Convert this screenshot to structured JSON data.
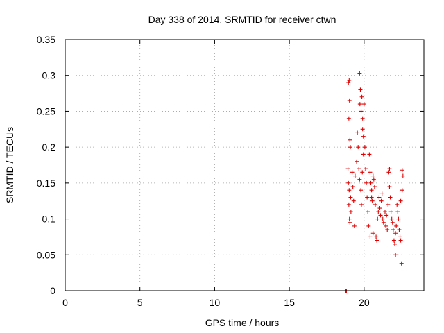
{
  "chart_data": {
    "type": "scatter",
    "title": "Day 338 of 2014, SRMTID for receiver ctwn",
    "xlabel": "GPS time / hours",
    "ylabel": "SRMTID / TECUs",
    "xlim": [
      0,
      24
    ],
    "ylim": [
      0,
      0.35
    ],
    "xticks": [
      0,
      5,
      10,
      15,
      20
    ],
    "yticks": [
      0,
      0.05,
      0.1,
      0.15,
      0.2,
      0.25,
      0.3,
      0.35
    ],
    "xtick_labels": [
      "0",
      "5",
      "10",
      "15",
      "20"
    ],
    "ytick_labels": [
      "0",
      "0.05",
      "0.1",
      "0.15",
      "0.2",
      "0.25",
      "0.3",
      "0.35"
    ],
    "grid": true,
    "legend": "none",
    "marker": "plus",
    "marker_color": "#e00000",
    "series": [
      {
        "points": [
          [
            18.78,
            0.0
          ],
          [
            18.8,
            0.0
          ],
          [
            18.82,
            0.0
          ],
          [
            18.95,
            0.29
          ],
          [
            19.0,
            0.293
          ],
          [
            19.02,
            0.265
          ],
          [
            18.98,
            0.24
          ],
          [
            19.05,
            0.21
          ],
          [
            19.08,
            0.2
          ],
          [
            18.92,
            0.17
          ],
          [
            18.95,
            0.15
          ],
          [
            19.0,
            0.14
          ],
          [
            19.1,
            0.13
          ],
          [
            19.02,
            0.1
          ],
          [
            19.05,
            0.095
          ],
          [
            18.98,
            0.12
          ],
          [
            19.12,
            0.11
          ],
          [
            19.2,
            0.165
          ],
          [
            19.25,
            0.145
          ],
          [
            19.3,
            0.125
          ],
          [
            19.35,
            0.09
          ],
          [
            19.4,
            0.16
          ],
          [
            19.5,
            0.18
          ],
          [
            19.55,
            0.22
          ],
          [
            19.6,
            0.2
          ],
          [
            19.7,
            0.303
          ],
          [
            19.75,
            0.28
          ],
          [
            19.72,
            0.26
          ],
          [
            19.8,
            0.25
          ],
          [
            19.85,
            0.27
          ],
          [
            19.9,
            0.225
          ],
          [
            19.95,
            0.215
          ],
          [
            20.0,
            0.26
          ],
          [
            19.9,
            0.24
          ],
          [
            19.65,
            0.17
          ],
          [
            19.7,
            0.155
          ],
          [
            19.78,
            0.14
          ],
          [
            19.82,
            0.12
          ],
          [
            19.88,
            0.165
          ],
          [
            19.95,
            0.19
          ],
          [
            20.05,
            0.2
          ],
          [
            20.1,
            0.17
          ],
          [
            20.15,
            0.15
          ],
          [
            20.2,
            0.13
          ],
          [
            20.25,
            0.11
          ],
          [
            20.3,
            0.09
          ],
          [
            20.35,
            0.19
          ],
          [
            20.4,
            0.165
          ],
          [
            20.45,
            0.15
          ],
          [
            20.5,
            0.14
          ],
          [
            20.55,
            0.125
          ],
          [
            20.6,
            0.16
          ],
          [
            20.65,
            0.155
          ],
          [
            20.7,
            0.145
          ],
          [
            20.75,
            0.12
          ],
          [
            20.8,
            0.075
          ],
          [
            20.85,
            0.07
          ],
          [
            20.9,
            0.1
          ],
          [
            20.95,
            0.11
          ],
          [
            21.0,
            0.13
          ],
          [
            21.05,
            0.115
          ],
          [
            21.1,
            0.105
          ],
          [
            21.15,
            0.125
          ],
          [
            21.2,
            0.135
          ],
          [
            21.25,
            0.1
          ],
          [
            21.3,
            0.095
          ],
          [
            21.4,
            0.11
          ],
          [
            21.45,
            0.09
          ],
          [
            21.5,
            0.105
          ],
          [
            21.55,
            0.085
          ],
          [
            21.6,
            0.12
          ],
          [
            21.65,
            0.165
          ],
          [
            21.7,
            0.145
          ],
          [
            21.75,
            0.13
          ],
          [
            21.8,
            0.11
          ],
          [
            21.85,
            0.1
          ],
          [
            21.9,
            0.095
          ],
          [
            21.95,
            0.085
          ],
          [
            22.0,
            0.07
          ],
          [
            22.05,
            0.065
          ],
          [
            22.1,
            0.08
          ],
          [
            22.15,
            0.09
          ],
          [
            22.2,
            0.12
          ],
          [
            22.25,
            0.11
          ],
          [
            22.3,
            0.1
          ],
          [
            22.35,
            0.085
          ],
          [
            22.4,
            0.075
          ],
          [
            22.45,
            0.07
          ],
          [
            22.5,
            0.038
          ],
          [
            22.55,
            0.168
          ],
          [
            22.6,
            0.16
          ],
          [
            22.55,
            0.14
          ],
          [
            22.45,
            0.125
          ],
          [
            22.1,
            0.05
          ],
          [
            21.7,
            0.17
          ],
          [
            20.4,
            0.075
          ],
          [
            20.6,
            0.08
          ],
          [
            20.5,
            0.13
          ]
        ]
      }
    ]
  }
}
